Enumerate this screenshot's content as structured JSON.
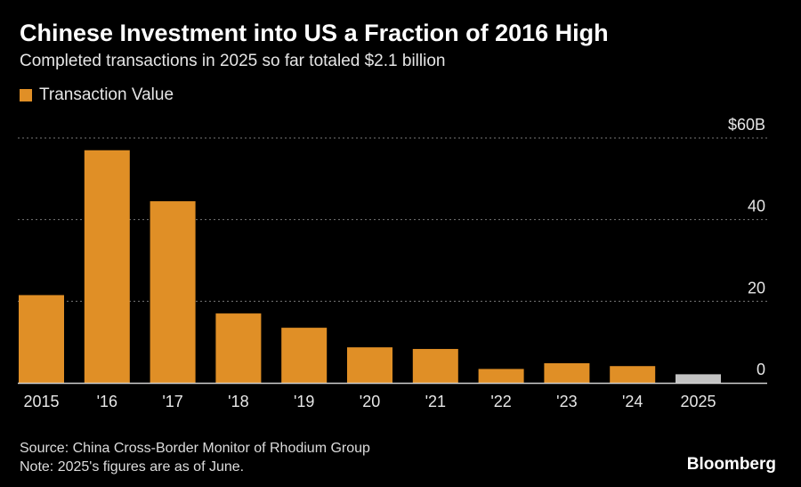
{
  "title": "Chinese Investment into US a Fraction of 2016 High",
  "subtitle": "Completed transactions in 2025 so far totaled $2.1 billion",
  "legend": {
    "label": "Transaction Value",
    "color": "#e08f26"
  },
  "source": "Source: China Cross-Border Monitor of Rhodium Group",
  "note": "Note: 2025's figures are as of June.",
  "brand": "Bloomberg",
  "colors": {
    "bar": "#e08f26",
    "partial_bar": "#c3c3c3",
    "grid": "#777777",
    "axis": "#cfcfcf"
  },
  "chart_data": {
    "type": "bar",
    "categories": [
      "2015",
      "'16",
      "'17",
      "'18",
      "'19",
      "'20",
      "'21",
      "'22",
      "'23",
      "'24",
      "2025"
    ],
    "series": [
      {
        "name": "Transaction Value",
        "values": [
          21.5,
          57,
          44.5,
          17,
          13.5,
          8.7,
          8.3,
          3.4,
          4.8,
          4.1,
          2.1
        ]
      }
    ],
    "yticks": [
      {
        "value": 60,
        "label": "$60B"
      },
      {
        "value": 40,
        "label": "40"
      },
      {
        "value": 20,
        "label": "20"
      },
      {
        "value": 0,
        "label": "0"
      }
    ],
    "ylim": [
      0,
      60
    ],
    "highlight_last": true,
    "grid": true,
    "legend_position": "top-left"
  }
}
